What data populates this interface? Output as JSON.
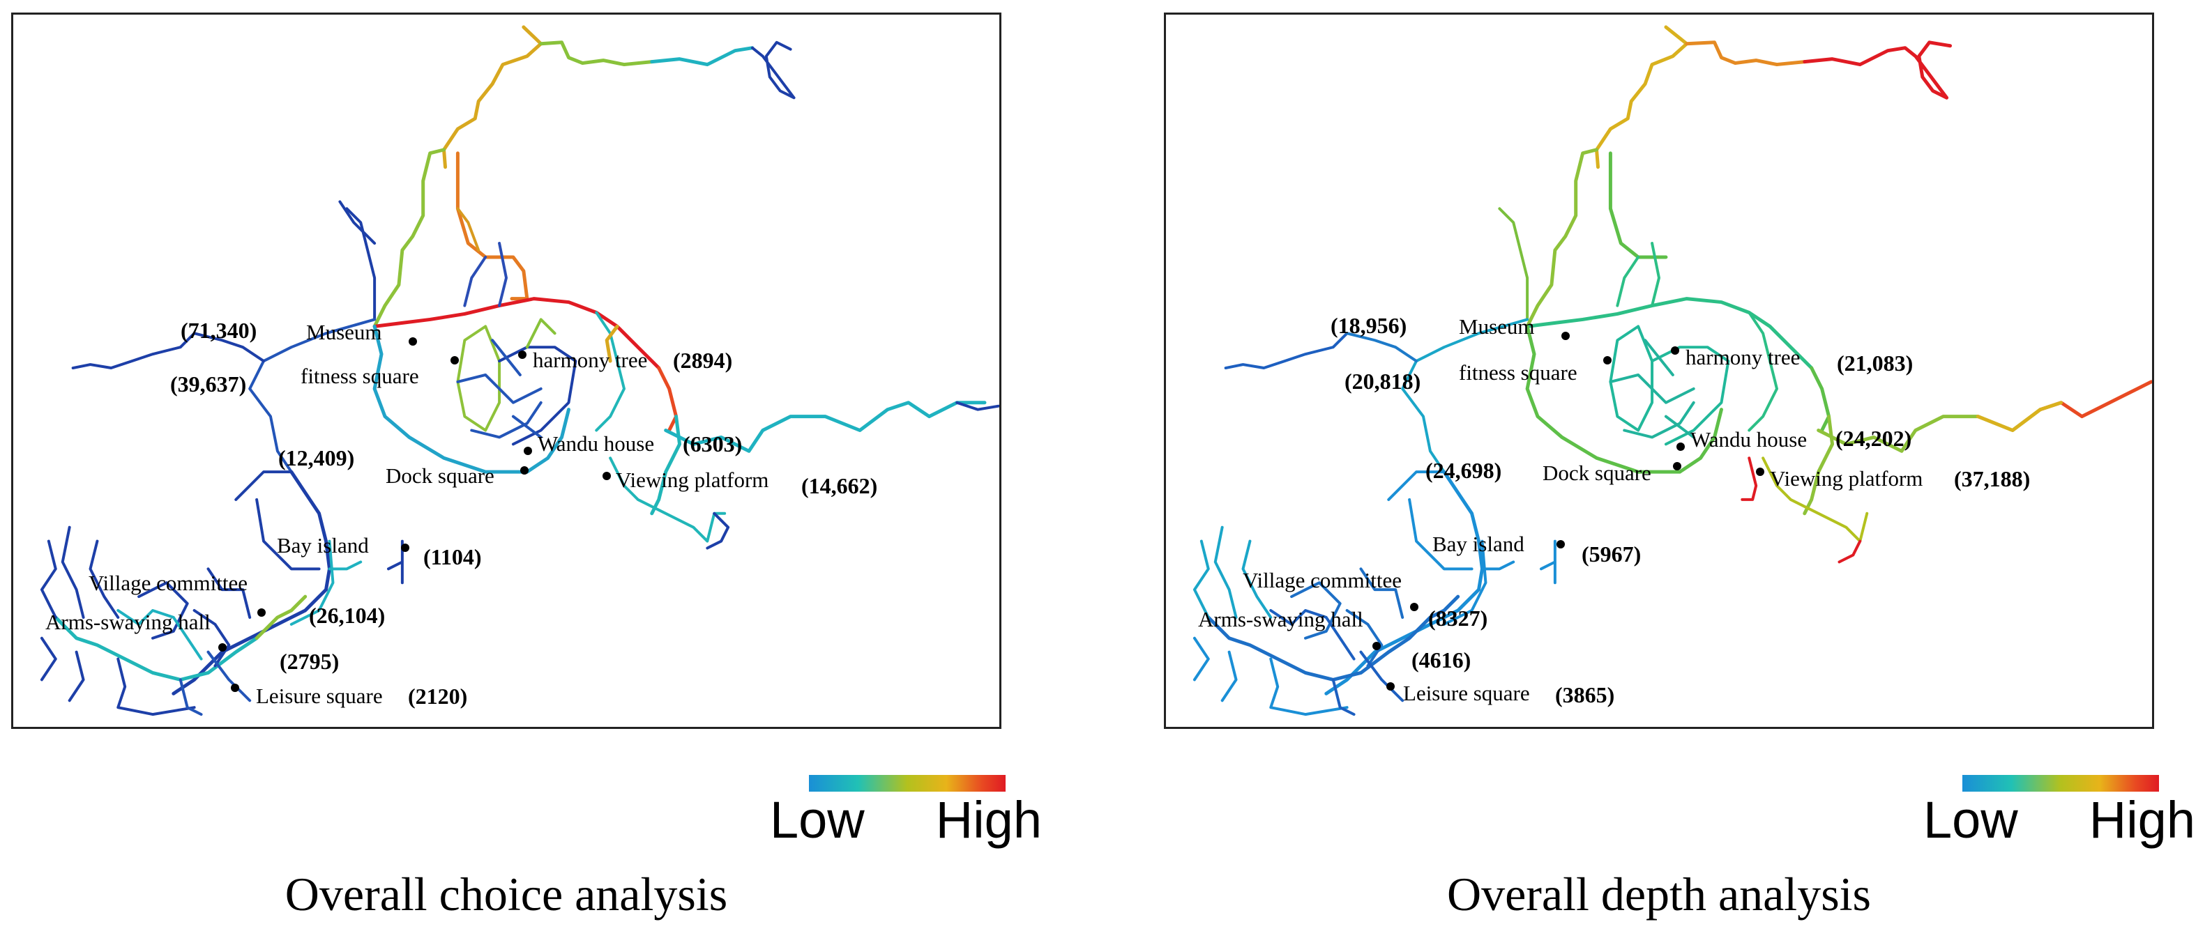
{
  "panels": [
    {
      "caption": "Overall choice analysis",
      "places": [
        {
          "name": "Museum",
          "value": "(71,340)"
        },
        {
          "name": "fitness square",
          "value": "(39,637)"
        },
        {
          "name": "harmony tree",
          "value": "(2894)"
        },
        {
          "name": "Wandu house",
          "value": "(6303)"
        },
        {
          "name": "Dock square",
          "value": "(12,409)"
        },
        {
          "name": "Viewing platform",
          "value": "(14,662)"
        },
        {
          "name": "Bay island",
          "value": "(1104)"
        },
        {
          "name": "Village committee",
          "value": "(26,104)"
        },
        {
          "name": "Arms-swaying hall",
          "value": "(2795)"
        },
        {
          "name": "Leisure square",
          "value": "(2120)"
        }
      ]
    },
    {
      "caption": "Overall depth analysis",
      "places": [
        {
          "name": "Museum",
          "value": "(18,956)"
        },
        {
          "name": "fitness square",
          "value": "(20,818)"
        },
        {
          "name": "harmony tree",
          "value": "(21,083)"
        },
        {
          "name": "Wandu house",
          "value": "(24,202)"
        },
        {
          "name": "Dock square",
          "value": "(24,698)"
        },
        {
          "name": "Viewing platform",
          "value": "(37,188)"
        },
        {
          "name": "Bay island",
          "value": "(5967)"
        },
        {
          "name": "Village committee",
          "value": "(8327)"
        },
        {
          "name": "Arms-swaying hall",
          "value": "(4616)"
        },
        {
          "name": "Leisure square",
          "value": "(3865)"
        }
      ]
    }
  ],
  "legend": {
    "low": "Low",
    "high": "High"
  },
  "colors": {
    "low": "#1a8fd6",
    "mid": "#b3c11e",
    "high": "#e01b23"
  }
}
